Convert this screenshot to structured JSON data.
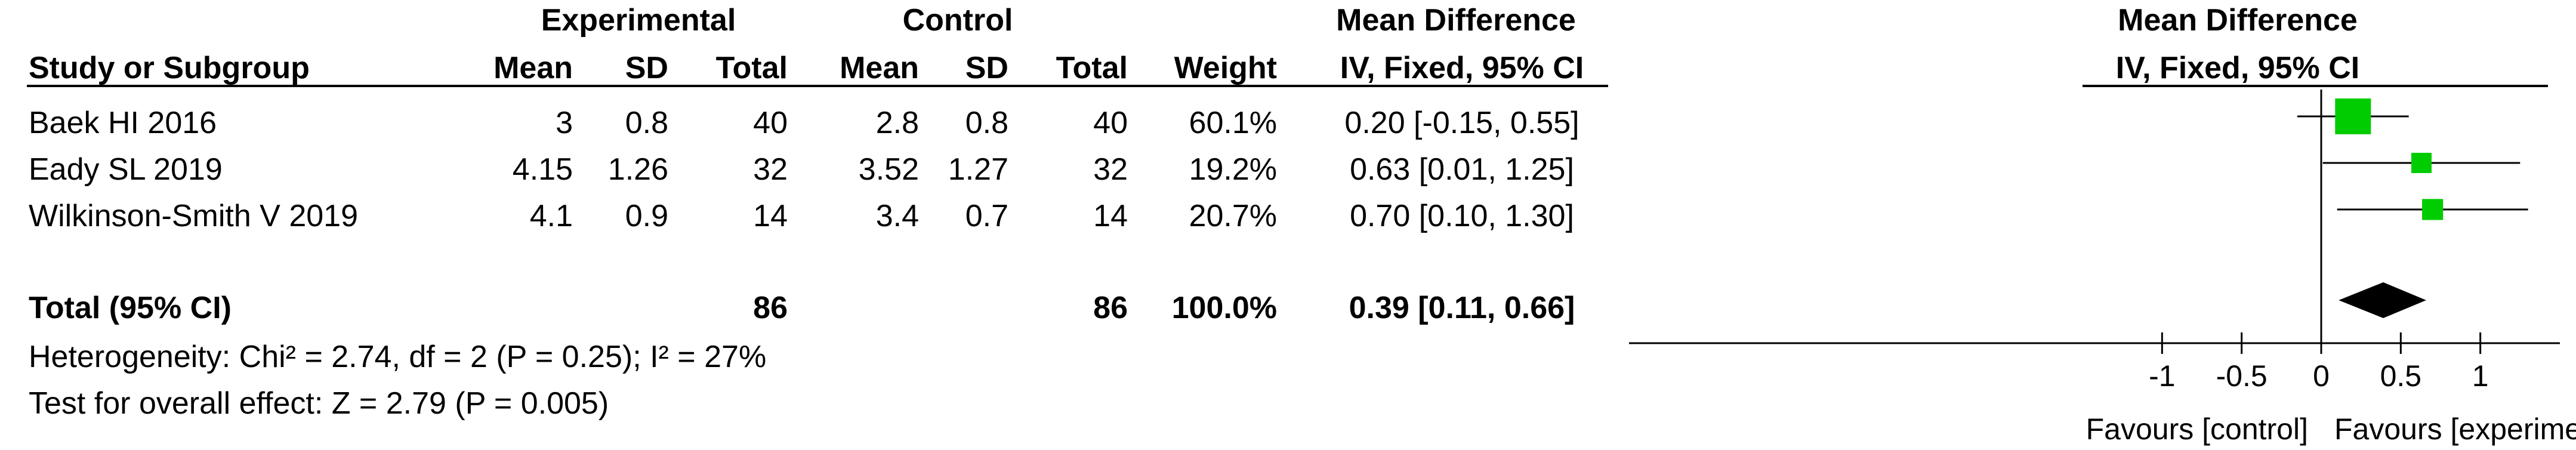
{
  "headers": {
    "experimental": "Experimental",
    "control": "Control",
    "mean_difference": "Mean Difference",
    "plot_mean_difference": "Mean Difference",
    "study": "Study or Subgroup",
    "exp_mean": "Mean",
    "exp_sd": "SD",
    "exp_total": "Total",
    "ctl_mean": "Mean",
    "ctl_sd": "SD",
    "ctl_total": "Total",
    "weight": "Weight",
    "method": "IV, Fixed, 95% CI",
    "plot_method": "IV, Fixed, 95% CI"
  },
  "studies": [
    {
      "name": "Baek HI 2016",
      "exp_mean": "3",
      "exp_sd": "0.8",
      "exp_total": "40",
      "ctl_mean": "2.8",
      "ctl_sd": "0.8",
      "ctl_total": "40",
      "weight": "60.1%",
      "ci_text": "0.20 [-0.15, 0.55]"
    },
    {
      "name": "Eady SL 2019",
      "exp_mean": "4.15",
      "exp_sd": "1.26",
      "exp_total": "32",
      "ctl_mean": "3.52",
      "ctl_sd": "1.27",
      "ctl_total": "32",
      "weight": "19.2%",
      "ci_text": "0.63 [0.01, 1.25]"
    },
    {
      "name": "Wilkinson-Smith V 2019",
      "exp_mean": "4.1",
      "exp_sd": "0.9",
      "exp_total": "14",
      "ctl_mean": "3.4",
      "ctl_sd": "0.7",
      "ctl_total": "14",
      "weight": "20.7%",
      "ci_text": "0.70 [0.10, 1.30]"
    }
  ],
  "total": {
    "label": "Total (95% CI)",
    "exp_total": "86",
    "ctl_total": "86",
    "weight": "100.0%",
    "ci_text": "0.39 [0.11, 0.66]"
  },
  "heterogeneity": "Heterogeneity: Chi² = 2.74, df = 2 (P = 0.25); I² = 27%",
  "overall_effect": "Test for overall effect: Z = 2.79 (P = 0.005)",
  "chart_data": {
    "type": "scatter",
    "subtype": "forest-plot",
    "xlim": [
      -1.5,
      1.5
    ],
    "xticks": [
      -1,
      -0.5,
      0,
      0.5,
      1
    ],
    "xtick_labels": [
      "-1",
      "-0.5",
      "0",
      "0.5",
      "1"
    ],
    "favours_left": "Favours [control]",
    "favours_right": "Favours [experimental]",
    "studies": [
      {
        "mean": 0.2,
        "lower": -0.15,
        "upper": 0.55,
        "weight": 60.1
      },
      {
        "mean": 0.63,
        "lower": 0.01,
        "upper": 1.25,
        "weight": 19.2
      },
      {
        "mean": 0.7,
        "lower": 0.1,
        "upper": 1.3,
        "weight": 20.7
      }
    ],
    "pooled": {
      "mean": 0.39,
      "lower": 0.11,
      "upper": 0.66
    },
    "marker_color": "#00cc00",
    "diamond_color": "#000000"
  }
}
